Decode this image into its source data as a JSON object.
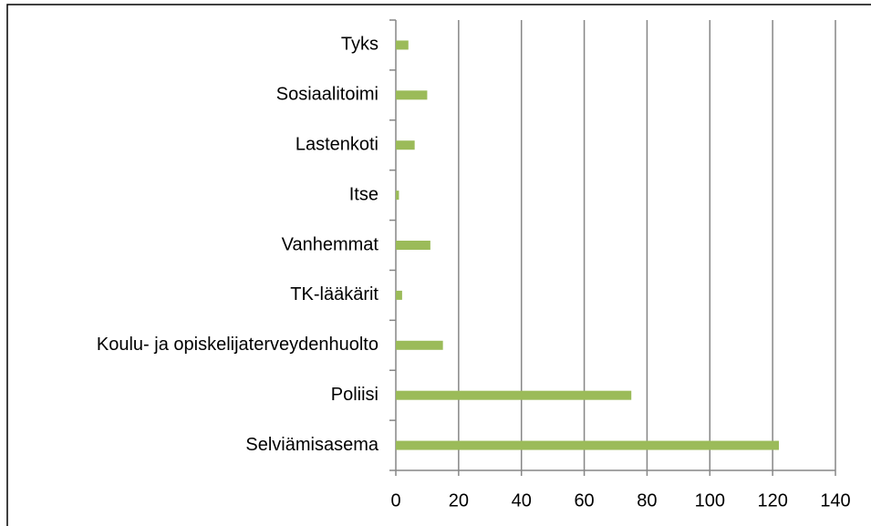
{
  "chart_data": {
    "type": "bar",
    "orientation": "horizontal",
    "categories": [
      "Selviämisasema",
      "Poliisi",
      "Koulu- ja opiskelijaterveydenhuolto",
      "TK-lääkärit",
      "Vanhemmat",
      "Itse",
      "Lastenkoti",
      "Sosiaalitoimi",
      "Tyks"
    ],
    "values": [
      122,
      75,
      15,
      2,
      11,
      1,
      6,
      10,
      4
    ],
    "color": "#9bbb59",
    "xlim": [
      0,
      140
    ],
    "xticks": [
      0,
      20,
      40,
      60,
      80,
      100,
      120,
      140
    ],
    "grid": true
  }
}
